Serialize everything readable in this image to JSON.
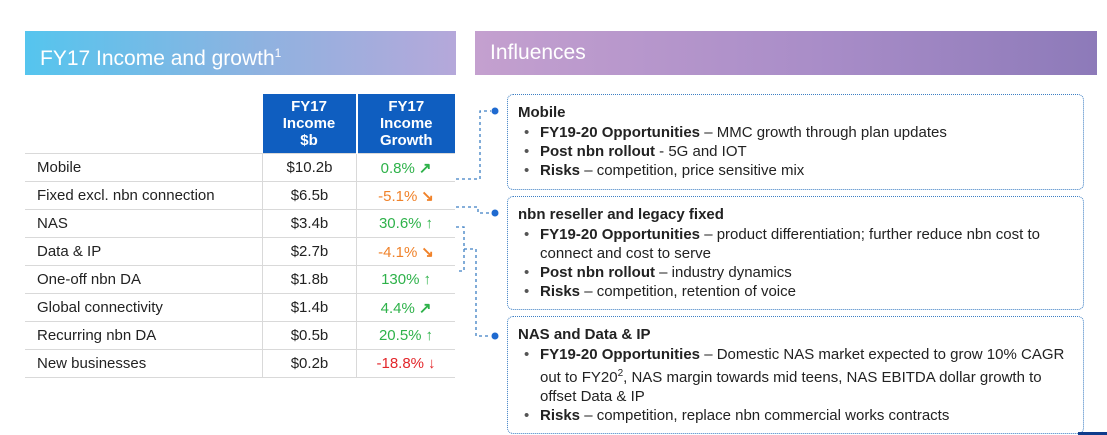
{
  "left_header": {
    "title": "FY17 Income and growth",
    "footnote": "1"
  },
  "right_header": {
    "title": "Influences"
  },
  "table": {
    "col1": [
      "FY17",
      "Income",
      "$b"
    ],
    "col2": [
      "FY17",
      "Income",
      "Growth"
    ],
    "rows": [
      {
        "name": "Mobile",
        "value": "$10.2b",
        "growth": "0.8%",
        "trend": "up-right",
        "color": "#2eb24a"
      },
      {
        "name": "Fixed excl. nbn connection",
        "value": "$6.5b",
        "growth": "-5.1%",
        "trend": "down-right",
        "color": "#f0822a"
      },
      {
        "name": "NAS",
        "value": "$3.4b",
        "growth": "30.6%",
        "trend": "up",
        "color": "#2eb24a"
      },
      {
        "name": "Data & IP",
        "value": "$2.7b",
        "growth": "-4.1%",
        "trend": "down-right",
        "color": "#f0822a"
      },
      {
        "name": "One-off nbn DA",
        "value": "$1.8b",
        "growth": "130%",
        "trend": "up",
        "color": "#2eb24a"
      },
      {
        "name": "Global connectivity",
        "value": "$1.4b",
        "growth": "4.4%",
        "trend": "up-right",
        "color": "#2eb24a"
      },
      {
        "name": "Recurring nbn DA",
        "value": "$0.5b",
        "growth": "20.5%",
        "trend": "up",
        "color": "#2eb24a"
      },
      {
        "name": "New businesses",
        "value": "$0.2b",
        "growth": "-18.8%",
        "trend": "down",
        "color": "#e3262a"
      }
    ]
  },
  "influences": {
    "mobile": {
      "title": "Mobile",
      "b1_bold": "FY19-20 Opportunities",
      "b1_text": " – MMC growth through plan updates",
      "b2_bold": "Post nbn rollout",
      "b2_text": " - 5G and IOT",
      "b3_bold": "Risks",
      "b3_text": " – competition, price sensitive mix"
    },
    "nbn": {
      "title": "nbn reseller and legacy fixed",
      "b1_bold": "FY19-20 Opportunities",
      "b1_text": " – product differentiation; further reduce nbn cost to connect and cost to serve",
      "b2_bold": "Post nbn rollout",
      "b2_text": " – industry dynamics",
      "b3_bold": "Risks",
      "b3_text": " – competition, retention of voice"
    },
    "nas": {
      "title": "NAS and Data & IP",
      "b1_bold": "FY19-20 Opportunities",
      "b1_text_a": " – Domestic NAS market expected to grow 10% CAGR out to FY20",
      "b1_sup": "2",
      "b1_text_b": ", NAS margin towards mid teens, NAS EBITDA dollar growth to offset Data & IP",
      "b2_bold": "Risks",
      "b2_text": " – competition, replace nbn commercial works contracts"
    }
  }
}
